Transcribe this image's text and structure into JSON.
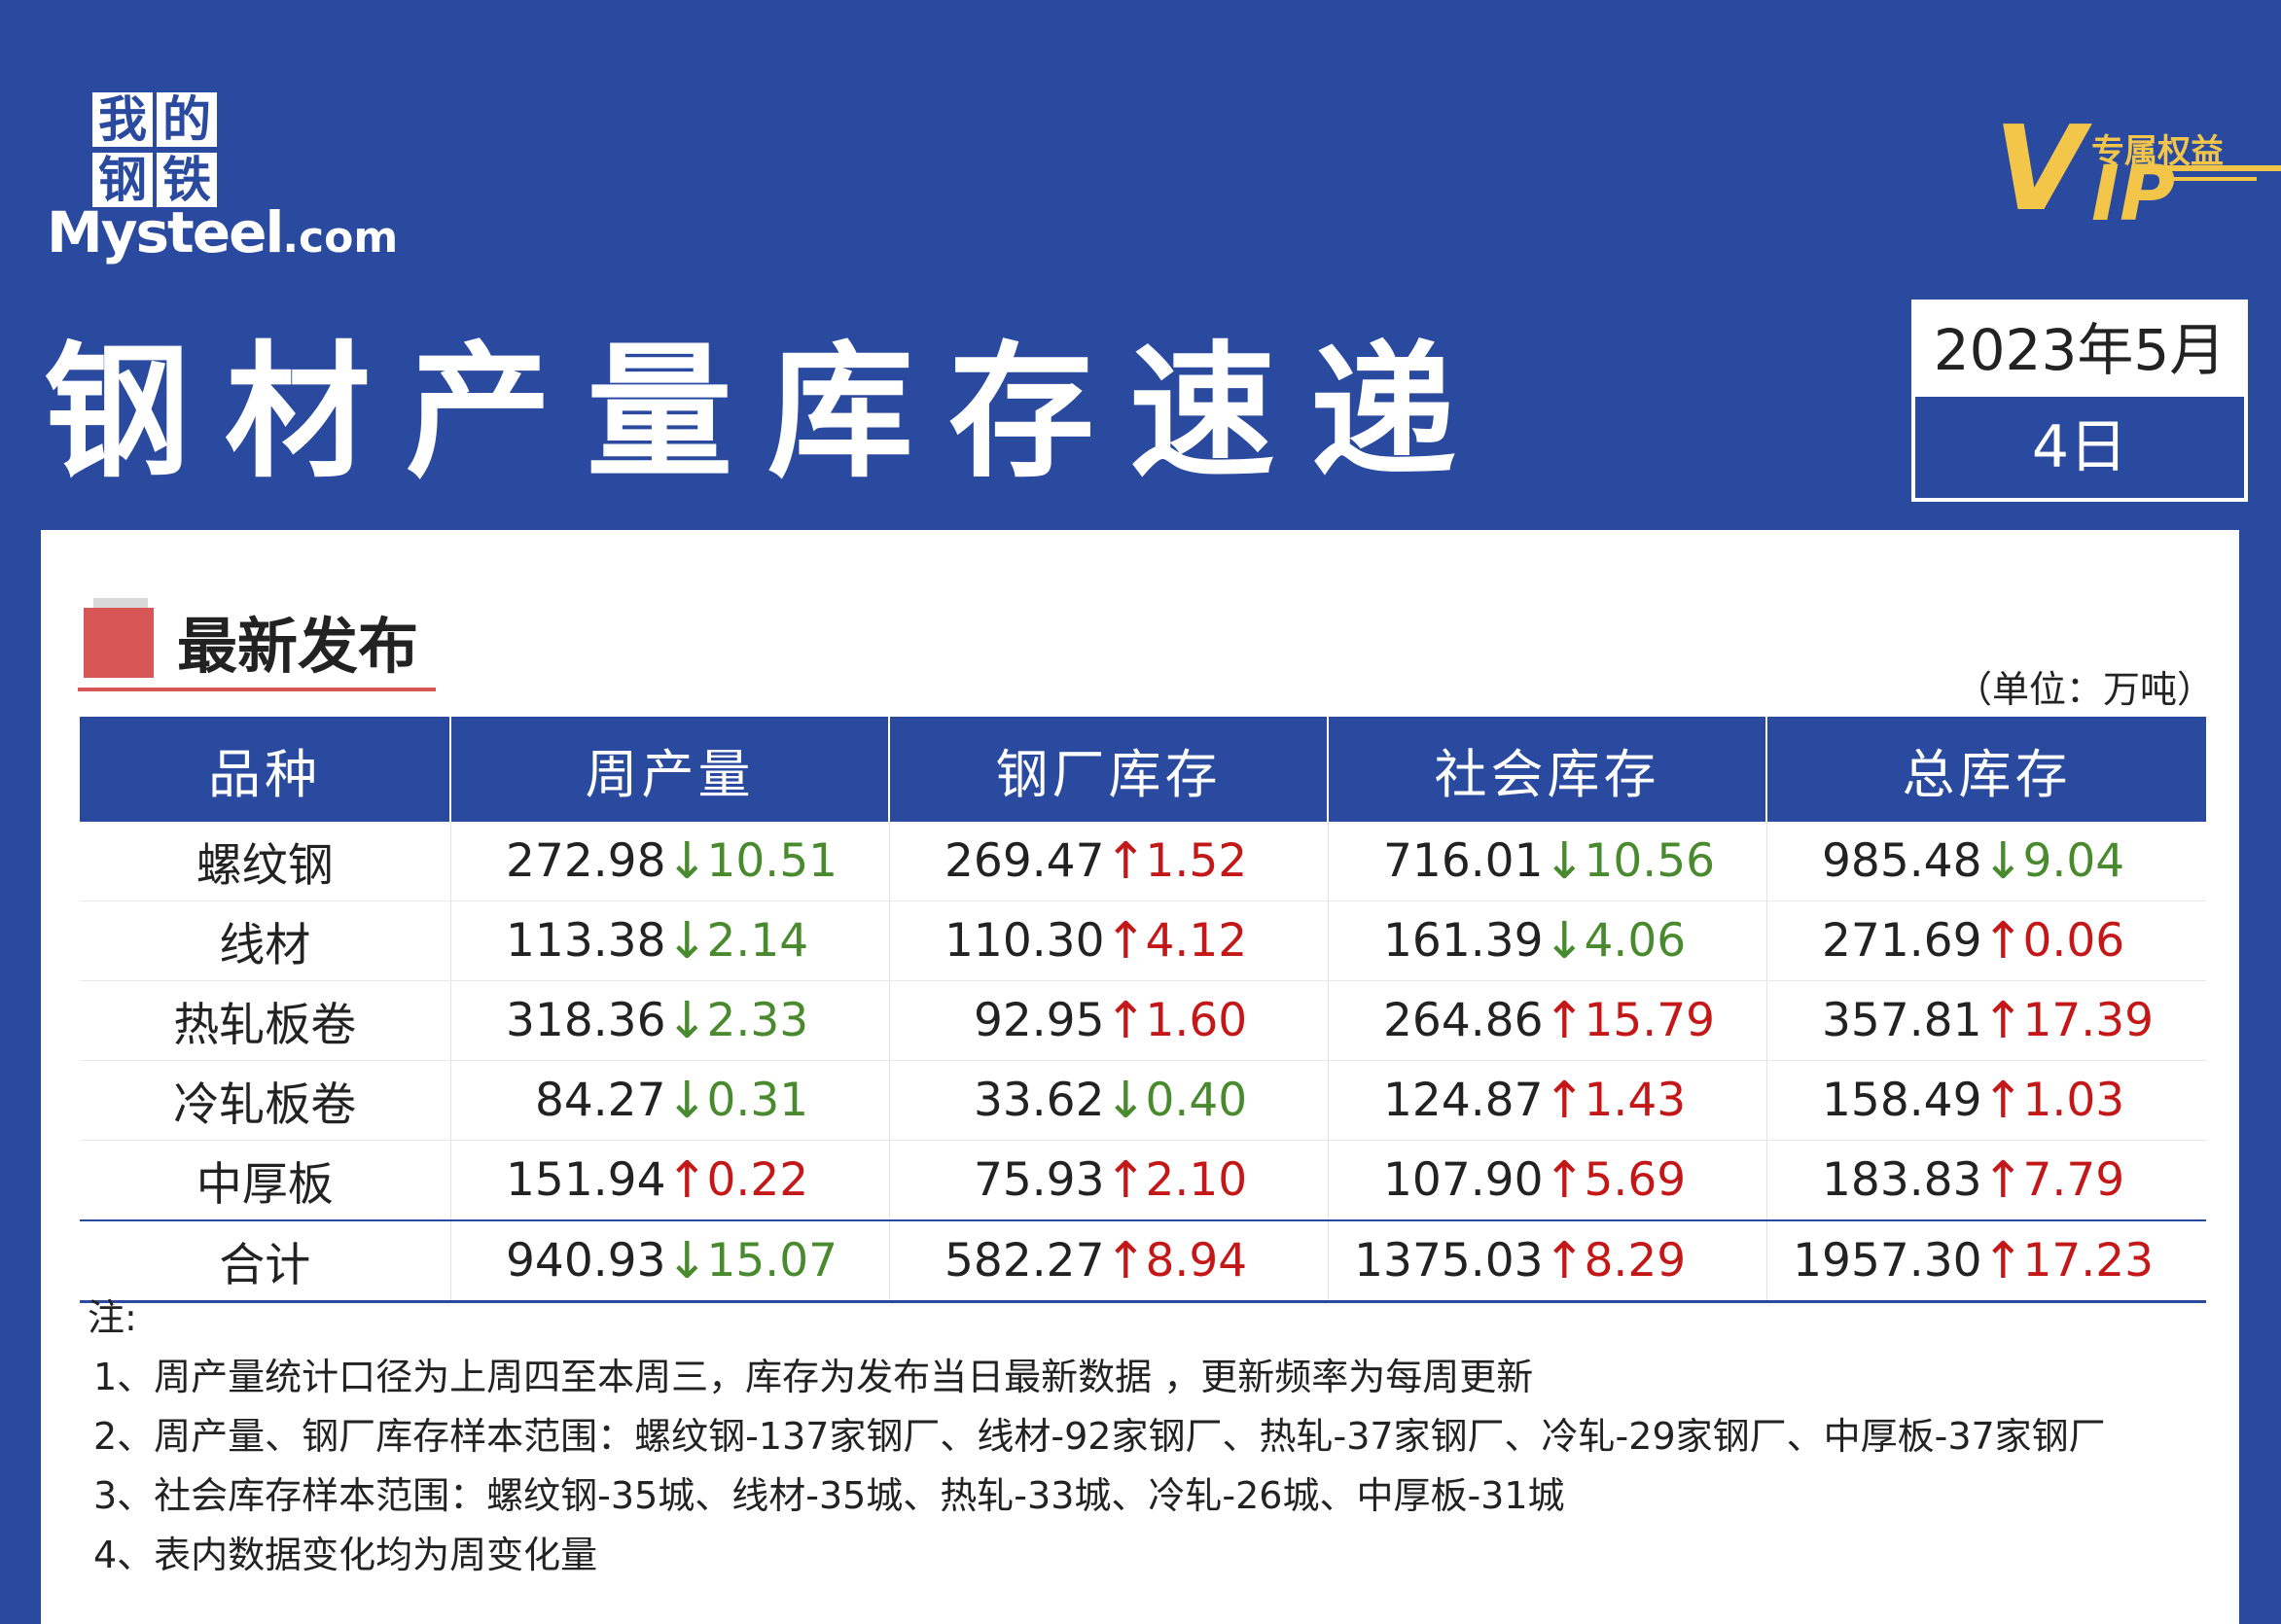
{
  "logo": {
    "cn_chars": [
      "我",
      "的",
      "钢",
      "铁"
    ],
    "en_main": "Mysteel",
    "en_suffix": ".com"
  },
  "vip": {
    "letter_v": "V",
    "letters_ip": "IP",
    "subtitle": "专属权益"
  },
  "title": "钢材产量库存速递",
  "date": {
    "year_month": "2023年5月",
    "day": "4日"
  },
  "section": {
    "title": "最新发布",
    "unit": "（单位：万吨）"
  },
  "table": {
    "headers": [
      "品种",
      "周产量",
      "钢厂库存",
      "社会库存",
      "总库存"
    ],
    "rows": [
      {
        "name": "螺纹钢",
        "cells": [
          {
            "value": "272.98",
            "dir": "down",
            "arrow": "↓",
            "change": "10.51"
          },
          {
            "value": "269.47",
            "dir": "up",
            "arrow": "↑",
            "change": "1.52"
          },
          {
            "value": "716.01",
            "dir": "down",
            "arrow": "↓",
            "change": "10.56"
          },
          {
            "value": "985.48",
            "dir": "down",
            "arrow": "↓",
            "change": "9.04"
          }
        ]
      },
      {
        "name": "线材",
        "cells": [
          {
            "value": "113.38",
            "dir": "down",
            "arrow": "↓",
            "change": "2.14"
          },
          {
            "value": "110.30",
            "dir": "up",
            "arrow": "↑",
            "change": "4.12"
          },
          {
            "value": "161.39",
            "dir": "down",
            "arrow": "↓",
            "change": "4.06"
          },
          {
            "value": "271.69",
            "dir": "up",
            "arrow": "↑",
            "change": "0.06"
          }
        ]
      },
      {
        "name": "热轧板卷",
        "cells": [
          {
            "value": "318.36",
            "dir": "down",
            "arrow": "↓",
            "change": "2.33"
          },
          {
            "value": "92.95",
            "dir": "up",
            "arrow": "↑",
            "change": "1.60"
          },
          {
            "value": "264.86",
            "dir": "up",
            "arrow": "↑",
            "change": "15.79"
          },
          {
            "value": "357.81",
            "dir": "up",
            "arrow": "↑",
            "change": "17.39"
          }
        ]
      },
      {
        "name": "冷轧板卷",
        "cells": [
          {
            "value": "84.27",
            "dir": "down",
            "arrow": "↓",
            "change": "0.31"
          },
          {
            "value": "33.62",
            "dir": "down",
            "arrow": "↓",
            "change": "0.40"
          },
          {
            "value": "124.87",
            "dir": "up",
            "arrow": "↑",
            "change": "1.43"
          },
          {
            "value": "158.49",
            "dir": "up",
            "arrow": "↑",
            "change": "1.03"
          }
        ]
      },
      {
        "name": "中厚板",
        "cells": [
          {
            "value": "151.94",
            "dir": "up",
            "arrow": "↑",
            "change": "0.22"
          },
          {
            "value": "75.93",
            "dir": "up",
            "arrow": "↑",
            "change": "2.10"
          },
          {
            "value": "107.90",
            "dir": "up",
            "arrow": "↑",
            "change": "5.69"
          },
          {
            "value": "183.83",
            "dir": "up",
            "arrow": "↑",
            "change": "7.79"
          }
        ]
      },
      {
        "name": "合计",
        "total": true,
        "cells": [
          {
            "value": "940.93",
            "dir": "down",
            "arrow": "↓",
            "change": "15.07"
          },
          {
            "value": "582.27",
            "dir": "up",
            "arrow": "↑",
            "change": "8.94"
          },
          {
            "value": "1375.03",
            "dir": "up",
            "arrow": "↑",
            "change": "8.29"
          },
          {
            "value": "1957.30",
            "dir": "up",
            "arrow": "↑",
            "change": "17.23"
          }
        ]
      }
    ]
  },
  "notes": {
    "heading": "注:",
    "items": [
      "1、周产量统计口径为上周四至本周三，库存为发布当日最新数据 ，更新频率为每周更新",
      "2、周产量、钢厂库存样本范围：螺纹钢-137家钢厂、线材-92家钢厂、热轧-37家钢厂、冷轧-29家钢厂、中厚板-37家钢厂",
      "3、社会库存样本范围：螺纹钢-35城、线材-35城、热轧-33城、冷轧-26城、中厚板-31城",
      "4、表内数据变化均为周变化量"
    ]
  },
  "colors": {
    "brand_blue": "#2a4aa0",
    "accent_red": "#d95656",
    "up_red": "#c41818",
    "down_green": "#4a8a2e",
    "vip_gold": "#f3c64a"
  }
}
